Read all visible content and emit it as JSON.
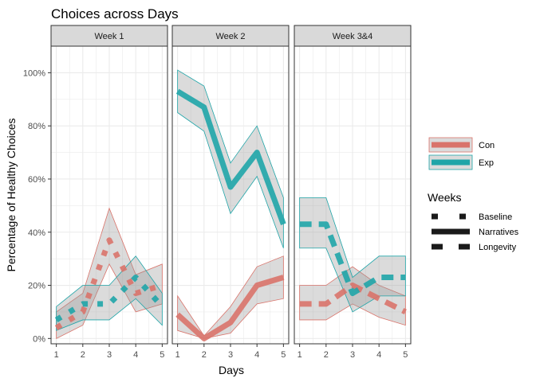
{
  "chart_data": {
    "type": "line",
    "title": "Choices across Days",
    "xlabel": "Days",
    "ylabel": "Percentage of Healthy Choices",
    "ylim": [
      -0.02,
      1.1
    ],
    "yticks": [
      0,
      0.2,
      0.4,
      0.6,
      0.8,
      1.0
    ],
    "ytick_labels": [
      "0%",
      "20%",
      "40%",
      "60%",
      "80%",
      "100%"
    ],
    "xlim": [
      0.8,
      5.2
    ],
    "xticks": [
      1,
      2,
      3,
      4,
      5
    ],
    "xtick_labels": [
      "1",
      "2",
      "3",
      "4",
      "5"
    ],
    "grid": true,
    "legend_placement": "right",
    "colors": {
      "Con": "#D9736A",
      "Exp": "#1FA5A8",
      "ribbon": "#999999",
      "strip": "#D9D9D9",
      "panel_border": "#333333",
      "grid": "#EBEBEB"
    },
    "legend": {
      "group_entries": [
        "Con",
        "Exp"
      ],
      "linetype_title": "Weeks",
      "linetype_entries": [
        "Baseline",
        "Narratives",
        "Longevity"
      ]
    },
    "facets": [
      {
        "label": "Week 1",
        "linetype": "Baseline",
        "series": [
          {
            "name": "Con",
            "x": [
              1,
              2,
              3,
              4,
              5
            ],
            "y": [
              0.04,
              0.1,
              0.37,
              0.17,
              0.2
            ],
            "lower": [
              0.0,
              0.05,
              0.28,
              0.1,
              0.13
            ],
            "upper": [
              0.1,
              0.17,
              0.49,
              0.24,
              0.28
            ]
          },
          {
            "name": "Exp",
            "x": [
              1,
              2,
              3,
              4,
              5
            ],
            "y": [
              0.07,
              0.13,
              0.13,
              0.23,
              0.12
            ],
            "lower": [
              0.03,
              0.07,
              0.07,
              0.15,
              0.05
            ],
            "upper": [
              0.12,
              0.2,
              0.2,
              0.31,
              0.17
            ]
          }
        ]
      },
      {
        "label": "Week 2",
        "linetype": "Narratives",
        "series": [
          {
            "name": "Con",
            "x": [
              1,
              2,
              3,
              4,
              5
            ],
            "y": [
              0.09,
              0.0,
              0.06,
              0.2,
              0.23
            ],
            "lower": [
              0.03,
              0.0,
              0.02,
              0.13,
              0.15
            ],
            "upper": [
              0.16,
              0.01,
              0.12,
              0.27,
              0.31
            ]
          },
          {
            "name": "Exp",
            "x": [
              1,
              2,
              3,
              4,
              5
            ],
            "y": [
              0.93,
              0.87,
              0.57,
              0.7,
              0.43
            ],
            "lower": [
              0.85,
              0.78,
              0.47,
              0.61,
              0.34
            ],
            "upper": [
              1.01,
              0.95,
              0.66,
              0.8,
              0.53
            ]
          }
        ]
      },
      {
        "label": "Week 3&4",
        "linetype": "Longevity",
        "series": [
          {
            "name": "Con",
            "x": [
              1,
              2,
              3,
              4,
              5
            ],
            "y": [
              0.13,
              0.13,
              0.2,
              0.15,
              0.1
            ],
            "lower": [
              0.07,
              0.07,
              0.13,
              0.08,
              0.05
            ],
            "upper": [
              0.2,
              0.2,
              0.27,
              0.2,
              0.16
            ]
          },
          {
            "name": "Exp",
            "x": [
              1,
              2,
              3,
              4,
              5
            ],
            "y": [
              0.43,
              0.43,
              0.17,
              0.23,
              0.23
            ],
            "lower": [
              0.34,
              0.34,
              0.1,
              0.16,
              0.16
            ],
            "upper": [
              0.53,
              0.53,
              0.23,
              0.31,
              0.31
            ]
          }
        ]
      }
    ]
  }
}
